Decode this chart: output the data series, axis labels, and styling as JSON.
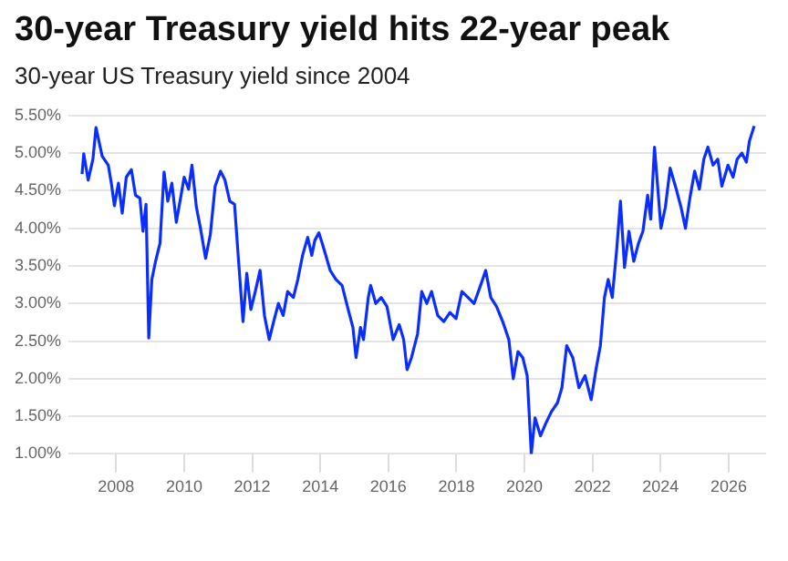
{
  "chart_data": {
    "type": "line",
    "title": "30-year Treasury yield hits 22-year peak",
    "subtitle": "30-year US Treasury yield since 2004",
    "x": [
      2007.0,
      2007.05,
      2007.18,
      2007.32,
      2007.41,
      2007.59,
      2007.77,
      2007.86,
      2007.95,
      2008.07,
      2008.18,
      2008.3,
      2008.45,
      2008.57,
      2008.7,
      2008.79,
      2008.88,
      2008.96,
      2009.05,
      2009.16,
      2009.29,
      2009.41,
      2009.52,
      2009.64,
      2009.77,
      2009.91,
      2010.0,
      2010.13,
      2010.23,
      2010.36,
      2010.48,
      2010.63,
      2010.77,
      2010.91,
      2011.07,
      2011.2,
      2011.34,
      2011.48,
      2011.6,
      2011.73,
      2011.84,
      2011.96,
      2012.09,
      2012.23,
      2012.36,
      2012.5,
      2012.63,
      2012.77,
      2012.91,
      2013.04,
      2013.21,
      2013.34,
      2013.48,
      2013.63,
      2013.75,
      2013.84,
      2013.96,
      2014.11,
      2014.29,
      2014.46,
      2014.64,
      2014.82,
      2014.96,
      2015.05,
      2015.18,
      2015.27,
      2015.41,
      2015.48,
      2015.63,
      2015.79,
      2015.96,
      2016.14,
      2016.32,
      2016.45,
      2016.55,
      2016.68,
      2016.86,
      2016.98,
      2017.13,
      2017.27,
      2017.45,
      2017.63,
      2017.81,
      2017.99,
      2018.16,
      2018.34,
      2018.52,
      2018.74,
      2018.86,
      2019.01,
      2019.18,
      2019.36,
      2019.54,
      2019.67,
      2019.81,
      2019.95,
      2020.08,
      2020.2,
      2020.31,
      2020.47,
      2020.62,
      2020.79,
      2020.97,
      2021.1,
      2021.24,
      2021.42,
      2021.6,
      2021.78,
      2021.96,
      2022.1,
      2022.23,
      2022.35,
      2022.46,
      2022.58,
      2022.71,
      2022.82,
      2022.94,
      2023.07,
      2023.21,
      2023.35,
      2023.48,
      2023.62,
      2023.71,
      2023.82,
      2023.92,
      2024.01,
      2024.14,
      2024.28,
      2024.46,
      2024.6,
      2024.73,
      2024.86,
      2025.0,
      2025.14,
      2025.27,
      2025.39,
      2025.54,
      2025.68,
      2025.8,
      2025.98,
      2026.13,
      2026.25,
      2026.39,
      2026.52,
      2026.61,
      2026.75
    ],
    "series": [
      {
        "color": "#0a2eff",
        "values": [
          4.72,
          4.99,
          4.64,
          4.92,
          5.34,
          4.96,
          4.84,
          4.6,
          4.3,
          4.6,
          4.2,
          4.68,
          4.78,
          4.44,
          4.4,
          3.96,
          4.32,
          2.54,
          3.32,
          3.56,
          3.8,
          4.75,
          4.36,
          4.6,
          4.08,
          4.44,
          4.68,
          4.52,
          4.84,
          4.28,
          4.0,
          3.6,
          3.92,
          4.56,
          4.76,
          4.64,
          4.36,
          4.32,
          3.56,
          2.76,
          3.4,
          2.92,
          3.16,
          3.44,
          2.84,
          2.52,
          2.76,
          3.0,
          2.84,
          3.16,
          3.08,
          3.32,
          3.64,
          3.88,
          3.64,
          3.84,
          3.94,
          3.72,
          3.44,
          3.32,
          3.24,
          2.92,
          2.68,
          2.28,
          2.68,
          2.52,
          3.08,
          3.24,
          3.0,
          3.08,
          2.96,
          2.52,
          2.72,
          2.52,
          2.12,
          2.28,
          2.6,
          3.16,
          3.0,
          3.16,
          2.84,
          2.76,
          2.88,
          2.8,
          3.16,
          3.08,
          3.0,
          3.28,
          3.44,
          3.08,
          2.96,
          2.76,
          2.52,
          2.0,
          2.36,
          2.28,
          2.04,
          1.0,
          1.48,
          1.24,
          1.4,
          1.56,
          1.68,
          1.88,
          2.44,
          2.28,
          1.88,
          2.04,
          1.72,
          2.12,
          2.44,
          3.08,
          3.32,
          3.08,
          3.72,
          4.36,
          3.48,
          3.96,
          3.56,
          3.8,
          3.96,
          4.44,
          4.12,
          5.08,
          4.52,
          4.0,
          4.28,
          4.8,
          4.52,
          4.28,
          4.0,
          4.4,
          4.76,
          4.52,
          4.92,
          5.08,
          4.84,
          4.92,
          4.56,
          4.84,
          4.68,
          4.92,
          5.0,
          4.88,
          5.16,
          5.36
        ]
      }
    ],
    "xlim": [
      2006.6,
      2027.1
    ],
    "xticks": [
      2008,
      2010,
      2012,
      2014,
      2016,
      2018,
      2020,
      2022,
      2024,
      2026
    ],
    "ylim": [
      1.0,
      5.5
    ],
    "yticks": [
      {
        "value": 1.0,
        "label": "1.00%"
      },
      {
        "value": 1.5,
        "label": "1.50%"
      },
      {
        "value": 2.0,
        "label": "2.00%"
      },
      {
        "value": 2.5,
        "label": "2.50%"
      },
      {
        "value": 3.0,
        "label": "3.00%"
      },
      {
        "value": 3.5,
        "label": "3.50%"
      },
      {
        "value": 4.0,
        "label": "4.00%"
      },
      {
        "value": 4.5,
        "label": "4.50%"
      },
      {
        "value": 5.0,
        "label": "5.00%"
      },
      {
        "value": 5.5,
        "label": "5.50%"
      }
    ],
    "grid": "y",
    "legend": false,
    "marker": "none",
    "line_style": "solid"
  }
}
